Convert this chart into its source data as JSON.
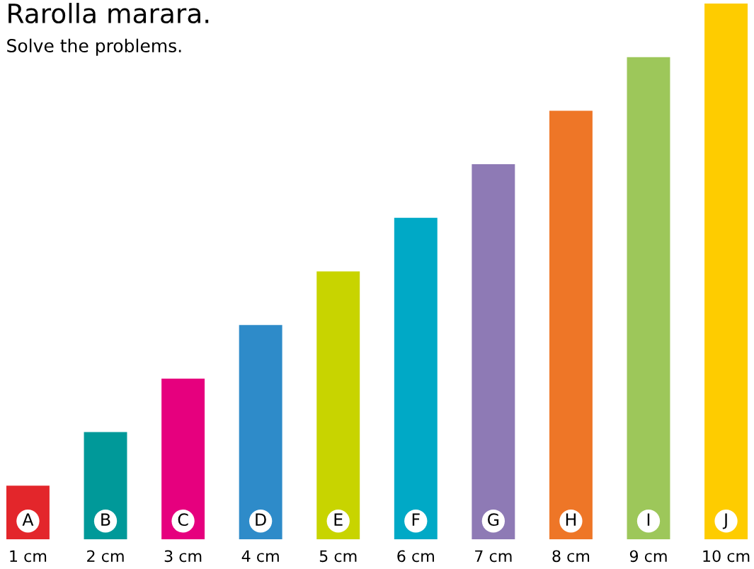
{
  "chart_data": {
    "type": "bar",
    "title": "Rarolla marara.",
    "subtitle": "Solve the problems.",
    "categories": [
      "A",
      "B",
      "C",
      "D",
      "E",
      "F",
      "G",
      "H",
      "I",
      "J"
    ],
    "values": [
      1,
      2,
      3,
      4,
      5,
      6,
      7,
      8,
      9,
      10
    ],
    "value_labels": [
      "1 cm",
      "2 cm",
      "3 cm",
      "4 cm",
      "5 cm",
      "6 cm",
      "7 cm",
      "8 cm",
      "9 cm",
      "10 cm"
    ],
    "colors": [
      "#e3262b",
      "#009999",
      "#e6007e",
      "#2e8bc9",
      "#c8d400",
      "#00a9c6",
      "#8e7ab5",
      "#ee7627",
      "#9dc75a",
      "#fecc00"
    ],
    "ylim": [
      0,
      10
    ]
  }
}
